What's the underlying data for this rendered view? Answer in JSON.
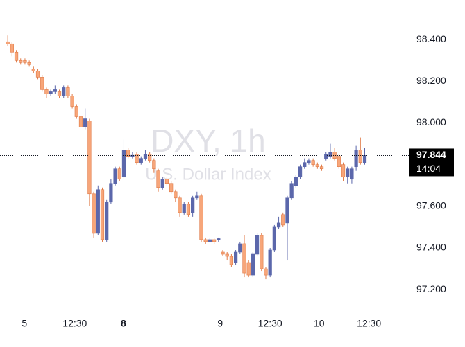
{
  "chart_data": {
    "type": "candlestick",
    "title": "DXY, 1h",
    "subtitle": "U.S. Dollar Index",
    "up_color": "#5b67ab",
    "down_color": "#f7a67a",
    "down_edge_color": "#e07a47",
    "xlim": [
      -1.8,
      92.6
    ],
    "xticks": [
      {
        "value": 3.9,
        "label": "5"
      },
      {
        "value": 15.6,
        "label": "12:30"
      },
      {
        "value": 26.9,
        "label": "8"
      },
      {
        "value": 49.4,
        "label": "9"
      },
      {
        "value": 61,
        "label": "12:30"
      },
      {
        "value": 72.4,
        "label": "10"
      },
      {
        "value": 84,
        "label": "12:30"
      }
    ],
    "ylim": [
      97.0774,
      98.5903
    ],
    "yticks": [
      {
        "value": 97.2,
        "label": "97.200"
      },
      {
        "value": 97.4,
        "label": "97.400"
      },
      {
        "value": 97.6,
        "label": "97.600"
      },
      {
        "value": 97.8,
        "label": "97.800"
      },
      {
        "value": 98.0,
        "label": "98.000"
      },
      {
        "value": 98.2,
        "label": "98.200"
      },
      {
        "value": 98.4,
        "label": "98.400"
      }
    ],
    "last_price": 97.844,
    "last_time": "14:04",
    "open": [
      98.39,
      98.38,
      98.34,
      98.3,
      98.3,
      98.29,
      98.26,
      98.25,
      98.22,
      98.16,
      98.14,
      98.15,
      98.15,
      98.13,
      98.17,
      98.13,
      98.08,
      98.03,
      97.98,
      98.01,
      97.66,
      97.47,
      97.68,
      97.44,
      97.62,
      97.71,
      97.78,
      97.74,
      97.87,
      97.84,
      97.85,
      97.81,
      97.83,
      97.85,
      97.82,
      97.77,
      97.69,
      97.73,
      97.71,
      97.67,
      97.64,
      97.57,
      97.61,
      97.57,
      97.64,
      97.65,
      97.44,
      97.43,
      97.44,
      97.44,
      97.38,
      97.37,
      97.36,
      97.33,
      97.38,
      97.42,
      97.33,
      97.27,
      97.37,
      97.46,
      97.3,
      97.27,
      97.39,
      97.5,
      97.56,
      97.52,
      97.64,
      97.7,
      97.74,
      97.79,
      97.81,
      97.82,
      97.8,
      97.79,
      97.83,
      97.84,
      97.86,
      97.84,
      97.8,
      97.74,
      97.73,
      97.79,
      97.87,
      97.81
    ],
    "high": [
      98.42,
      98.39,
      98.35,
      98.31,
      98.31,
      98.3,
      98.27,
      98.26,
      98.23,
      98.17,
      98.16,
      98.18,
      98.16,
      98.18,
      98.18,
      98.14,
      98.09,
      98.04,
      98.07,
      98.02,
      97.67,
      97.7,
      97.69,
      97.63,
      97.73,
      97.79,
      97.79,
      97.92,
      97.88,
      97.86,
      97.86,
      97.84,
      97.87,
      97.86,
      97.83,
      97.78,
      97.74,
      97.74,
      97.72,
      97.68,
      97.65,
      97.62,
      97.62,
      97.65,
      97.67,
      97.66,
      97.45,
      97.45,
      97.45,
      97.45,
      97.39,
      97.38,
      97.37,
      97.39,
      97.43,
      97.46,
      97.34,
      97.38,
      97.47,
      97.47,
      97.31,
      97.4,
      97.51,
      97.55,
      97.57,
      97.65,
      97.72,
      97.75,
      97.8,
      97.83,
      97.83,
      97.83,
      97.81,
      97.8,
      97.86,
      97.9,
      97.88,
      97.85,
      97.81,
      97.79,
      97.79,
      97.89,
      97.93,
      97.88
    ],
    "low": [
      98.37,
      98.32,
      98.29,
      98.28,
      98.28,
      98.27,
      98.24,
      98.21,
      98.15,
      98.12,
      98.13,
      98.14,
      98.12,
      98.12,
      98.12,
      98.07,
      98.02,
      97.97,
      97.97,
      97.6,
      97.45,
      97.46,
      97.43,
      97.43,
      97.61,
      97.7,
      97.72,
      97.73,
      97.83,
      97.83,
      97.8,
      97.8,
      97.82,
      97.81,
      97.76,
      97.67,
      97.68,
      97.7,
      97.66,
      97.62,
      97.55,
      97.56,
      97.55,
      97.55,
      97.63,
      97.43,
      97.42,
      97.43,
      97.42,
      97.43,
      97.36,
      97.34,
      97.31,
      97.32,
      97.37,
      97.26,
      97.26,
      97.26,
      97.36,
      97.29,
      97.25,
      97.26,
      97.38,
      97.49,
      97.5,
      97.34,
      97.63,
      97.69,
      97.73,
      97.78,
      97.8,
      97.79,
      97.78,
      97.77,
      97.82,
      97.83,
      97.82,
      97.78,
      97.72,
      97.71,
      97.71,
      97.77,
      97.8,
      97.8
    ],
    "close": [
      98.38,
      98.34,
      98.3,
      98.29,
      98.29,
      98.28,
      98.25,
      98.22,
      98.16,
      98.14,
      98.15,
      98.16,
      98.13,
      98.17,
      98.13,
      98.08,
      98.03,
      97.98,
      98.02,
      97.66,
      97.47,
      97.68,
      97.44,
      97.62,
      97.71,
      97.78,
      97.73,
      97.87,
      97.84,
      97.845,
      97.81,
      97.83,
      97.85,
      97.82,
      97.78,
      97.69,
      97.73,
      97.71,
      97.67,
      97.64,
      97.57,
      97.61,
      97.56,
      97.64,
      97.65,
      97.44,
      97.43,
      97.44,
      97.43,
      97.445,
      97.37,
      97.36,
      97.32,
      97.38,
      97.42,
      97.28,
      97.27,
      97.37,
      97.46,
      97.3,
      97.27,
      97.39,
      97.5,
      97.52,
      97.51,
      97.64,
      97.71,
      97.74,
      97.79,
      97.81,
      97.82,
      97.8,
      97.79,
      97.78,
      97.85,
      97.86,
      97.83,
      97.79,
      97.74,
      97.78,
      97.78,
      97.87,
      97.81,
      97.844
    ]
  }
}
